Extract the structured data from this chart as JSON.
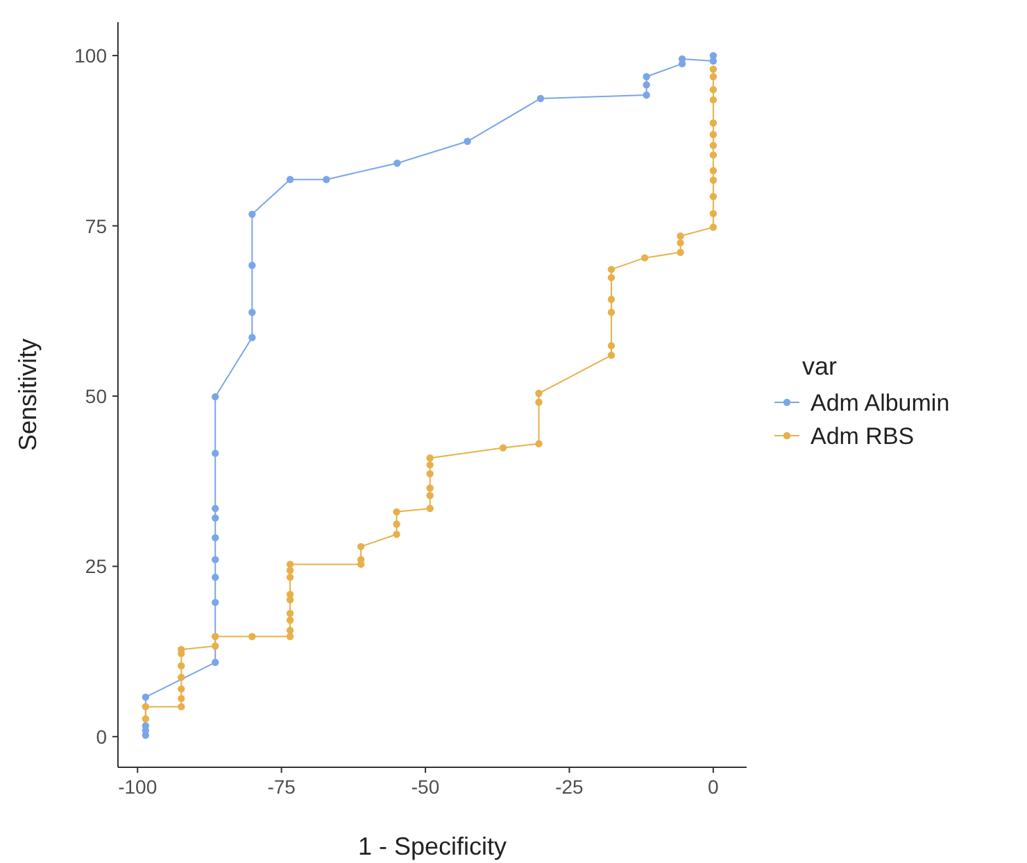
{
  "chart_data": {
    "type": "line",
    "xlabel": "1 - Specificity",
    "ylabel": "Sensitivity",
    "legend_title": "var",
    "legend": "right",
    "grid": false,
    "marker": "circle",
    "line_style": "solid",
    "xlim": [
      -103.4,
      5.8
    ],
    "ylim": [
      -4.5,
      104.9
    ],
    "xticks": [
      -100,
      -75,
      -50,
      -25,
      0
    ],
    "yticks": [
      0,
      25,
      50,
      75,
      100
    ],
    "series": [
      {
        "name": "Adm Albumin",
        "color": "#7aa6e8",
        "x": [
          -98.6,
          -98.6,
          -98.6,
          -98.6,
          -86.5,
          -86.5,
          -86.5,
          -86.5,
          -86.5,
          -86.5,
          -86.5,
          -86.5,
          -86.5,
          -80.1,
          -80.1,
          -80.1,
          -80.1,
          -73.5,
          -67.2,
          -54.9,
          -42.7,
          -30.0,
          -11.6,
          -11.6,
          -11.6,
          -5.4,
          -5.4,
          0,
          0
        ],
        "values": [
          0.2,
          0.9,
          1.6,
          5.8,
          10.9,
          19.7,
          23.4,
          26.0,
          29.2,
          32.1,
          33.5,
          41.6,
          49.9,
          58.6,
          62.3,
          69.2,
          76.7,
          81.8,
          81.8,
          84.2,
          87.4,
          93.7,
          94.2,
          95.7,
          96.9,
          98.8,
          99.5,
          99.2,
          100
        ]
      },
      {
        "name": "Adm RBS",
        "color": "#e8b04a",
        "x": [
          -98.6,
          -98.6,
          -92.4,
          -92.4,
          -92.4,
          -92.4,
          -92.4,
          -92.4,
          -92.4,
          -86.5,
          -86.5,
          -80.1,
          -73.5,
          -73.5,
          -73.5,
          -73.5,
          -73.5,
          -73.5,
          -73.5,
          -73.5,
          -73.5,
          -61.2,
          -61.2,
          -61.2,
          -55.0,
          -55.0,
          -55.0,
          -49.2,
          -49.2,
          -49.2,
          -49.2,
          -49.2,
          -49.2,
          -36.5,
          -30.3,
          -30.3,
          -30.3,
          -17.7,
          -17.7,
          -17.7,
          -17.7,
          -17.7,
          -17.7,
          -11.9,
          -5.7,
          -5.7,
          -5.7,
          0,
          0,
          0,
          0,
          0,
          0,
          0,
          0,
          0,
          0,
          0,
          0,
          0
        ],
        "values": [
          2.6,
          4.4,
          4.4,
          5.6,
          7.0,
          8.7,
          10.4,
          12.2,
          12.8,
          13.3,
          14.7,
          14.7,
          14.7,
          15.6,
          17.1,
          18.1,
          20.1,
          20.9,
          23.4,
          24.4,
          25.3,
          25.3,
          26.0,
          27.9,
          29.7,
          31.2,
          33.0,
          33.5,
          35.4,
          36.5,
          38.6,
          39.9,
          40.9,
          42.4,
          43.0,
          49.1,
          50.4,
          56.0,
          57.4,
          62.3,
          64.2,
          67.4,
          68.6,
          70.3,
          71.1,
          72.5,
          73.5,
          74.8,
          76.8,
          79.3,
          81.7,
          83.1,
          85.4,
          86.8,
          88.4,
          90.1,
          93.5,
          95.0,
          96.9,
          98.0
        ]
      }
    ]
  }
}
